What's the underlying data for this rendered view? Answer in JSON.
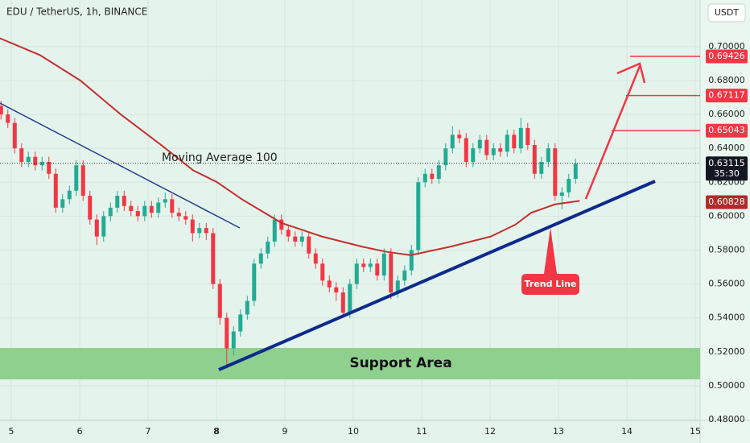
{
  "chart_data": {
    "type": "candlestick",
    "title": "EDU / TetherUS, 1h, BINANCE",
    "currency": "USDT",
    "annotations": {
      "moving_average": "Moving Average 100",
      "support": "Support Area",
      "trend": "Trend Line"
    },
    "x": [
      4.85,
      4.95,
      5.05,
      5.15,
      5.25,
      5.35,
      5.45,
      5.55,
      5.65,
      5.75,
      5.85,
      5.95,
      6.05,
      6.15,
      6.25,
      6.35,
      6.45,
      6.55,
      6.65,
      6.75,
      6.85,
      6.95,
      7.05,
      7.15,
      7.25,
      7.35,
      7.45,
      7.55,
      7.65,
      7.75,
      7.85,
      7.95,
      8.05,
      8.15,
      8.25,
      8.35,
      8.45,
      8.55,
      8.65,
      8.75,
      8.85,
      8.95,
      9.05,
      9.15,
      9.25,
      9.35,
      9.45,
      9.55,
      9.65,
      9.75,
      9.85,
      9.95,
      10.05,
      10.15,
      10.25,
      10.35,
      10.45,
      10.55,
      10.65,
      10.75,
      10.85,
      10.95,
      11.05,
      11.15,
      11.25,
      11.35,
      11.45,
      11.55,
      11.65,
      11.75,
      11.85,
      11.95,
      12.05,
      12.15,
      12.25,
      12.35,
      12.45,
      12.55,
      12.65,
      12.75,
      12.85,
      12.95,
      13.05,
      13.15,
      13.25
    ],
    "open": [
      0.665,
      0.66,
      0.655,
      0.64,
      0.632,
      0.635,
      0.63,
      0.632,
      0.625,
      0.605,
      0.61,
      0.615,
      0.63,
      0.612,
      0.598,
      0.588,
      0.6,
      0.605,
      0.612,
      0.606,
      0.603,
      0.6,
      0.606,
      0.602,
      0.608,
      0.61,
      0.602,
      0.6,
      0.598,
      0.59,
      0.593,
      0.59,
      0.56,
      0.54,
      0.522,
      0.532,
      0.542,
      0.55,
      0.572,
      0.578,
      0.585,
      0.598,
      0.592,
      0.588,
      0.585,
      0.588,
      0.578,
      0.572,
      0.562,
      0.558,
      0.555,
      0.543,
      0.56,
      0.572,
      0.57,
      0.572,
      0.565,
      0.578,
      0.555,
      0.562,
      0.568,
      0.58,
      0.62,
      0.625,
      0.622,
      0.63,
      0.64,
      0.648,
      0.646,
      0.632,
      0.64,
      0.645,
      0.636,
      0.64,
      0.638,
      0.648,
      0.64,
      0.652,
      0.642,
      0.625,
      0.632,
      0.64,
      0.612,
      0.614,
      0.622
    ],
    "high": [
      0.668,
      0.663,
      0.658,
      0.643,
      0.638,
      0.638,
      0.635,
      0.635,
      0.628,
      0.613,
      0.618,
      0.633,
      0.633,
      0.615,
      0.601,
      0.603,
      0.608,
      0.615,
      0.615,
      0.609,
      0.606,
      0.609,
      0.609,
      0.611,
      0.614,
      0.613,
      0.605,
      0.603,
      0.601,
      0.596,
      0.596,
      0.593,
      0.563,
      0.543,
      0.535,
      0.545,
      0.553,
      0.575,
      0.581,
      0.588,
      0.601,
      0.601,
      0.595,
      0.591,
      0.591,
      0.591,
      0.581,
      0.575,
      0.565,
      0.561,
      0.558,
      0.563,
      0.575,
      0.575,
      0.575,
      0.575,
      0.581,
      0.581,
      0.565,
      0.571,
      0.583,
      0.623,
      0.628,
      0.628,
      0.633,
      0.643,
      0.653,
      0.651,
      0.649,
      0.643,
      0.648,
      0.648,
      0.643,
      0.643,
      0.651,
      0.651,
      0.658,
      0.655,
      0.645,
      0.635,
      0.643,
      0.643,
      0.617,
      0.625,
      0.634
    ],
    "low": [
      0.657,
      0.652,
      0.637,
      0.629,
      0.629,
      0.627,
      0.627,
      0.622,
      0.602,
      0.602,
      0.607,
      0.612,
      0.609,
      0.595,
      0.583,
      0.585,
      0.597,
      0.602,
      0.603,
      0.6,
      0.597,
      0.597,
      0.599,
      0.599,
      0.605,
      0.599,
      0.597,
      0.595,
      0.585,
      0.587,
      0.586,
      0.557,
      0.536,
      0.512,
      0.518,
      0.529,
      0.539,
      0.547,
      0.569,
      0.575,
      0.582,
      0.589,
      0.585,
      0.582,
      0.582,
      0.575,
      0.569,
      0.559,
      0.555,
      0.55,
      0.54,
      0.54,
      0.557,
      0.567,
      0.567,
      0.562,
      0.562,
      0.551,
      0.552,
      0.559,
      0.565,
      0.577,
      0.617,
      0.619,
      0.619,
      0.627,
      0.637,
      0.643,
      0.629,
      0.629,
      0.637,
      0.633,
      0.633,
      0.635,
      0.635,
      0.637,
      0.637,
      0.639,
      0.622,
      0.622,
      0.629,
      0.609,
      0.604,
      0.611,
      0.619
    ],
    "close": [
      0.66,
      0.655,
      0.64,
      0.632,
      0.635,
      0.63,
      0.632,
      0.625,
      0.605,
      0.61,
      0.615,
      0.63,
      0.612,
      0.598,
      0.588,
      0.6,
      0.605,
      0.612,
      0.606,
      0.603,
      0.6,
      0.606,
      0.602,
      0.608,
      0.61,
      0.602,
      0.6,
      0.598,
      0.59,
      0.593,
      0.59,
      0.56,
      0.54,
      0.522,
      0.532,
      0.542,
      0.55,
      0.572,
      0.578,
      0.585,
      0.598,
      0.592,
      0.588,
      0.585,
      0.588,
      0.578,
      0.572,
      0.562,
      0.558,
      0.555,
      0.543,
      0.56,
      0.572,
      0.57,
      0.572,
      0.565,
      0.578,
      0.555,
      0.562,
      0.568,
      0.58,
      0.62,
      0.625,
      0.622,
      0.63,
      0.64,
      0.648,
      0.646,
      0.632,
      0.64,
      0.645,
      0.636,
      0.64,
      0.638,
      0.648,
      0.64,
      0.652,
      0.642,
      0.625,
      0.632,
      0.64,
      0.612,
      0.614,
      0.622,
      0.631
    ],
    "up_color": "#22ab94",
    "down_color": "#f23645",
    "moving_average": {
      "color": "#c62f2f",
      "x": [
        4.83,
        5.42,
        6.01,
        6.6,
        7.19,
        7.66,
        8.01,
        8.37,
        8.95,
        9.54,
        10.13,
        10.48,
        10.84,
        11.42,
        12.01,
        12.37,
        12.6,
        12.95,
        13.31
      ],
      "values": [
        0.705,
        0.695,
        0.68,
        0.66,
        0.642,
        0.627,
        0.62,
        0.61,
        0.596,
        0.588,
        0.582,
        0.579,
        0.577,
        0.582,
        0.588,
        0.595,
        0.602,
        0.607,
        0.609
      ]
    },
    "levels": [
      0.69426,
      0.67117,
      0.65043
    ],
    "last_price": 0.63115,
    "countdown": "35:30",
    "ma_last": 0.60828,
    "xlim": [
      4.835,
      15.07
    ],
    "ylim": [
      0.4795,
      0.7275
    ],
    "xticks": [
      5,
      6,
      7,
      8,
      9,
      10,
      11,
      12,
      13,
      14,
      15
    ],
    "yticks": [
      {
        "value": 0.48,
        "label": "0.48000"
      },
      {
        "value": 0.5,
        "label": "0.50000"
      },
      {
        "value": 0.52,
        "label": "0.52000"
      },
      {
        "value": 0.54,
        "label": "0.54000"
      },
      {
        "value": 0.56,
        "label": "0.56000"
      },
      {
        "value": 0.58,
        "label": "0.58000"
      },
      {
        "value": 0.6,
        "label": "0.60000"
      },
      {
        "value": 0.62,
        "label": "0.62000"
      },
      {
        "value": 0.64,
        "label": "0.64000"
      },
      {
        "value": 0.66,
        "label": "0.66000"
      },
      {
        "value": 0.68,
        "label": "0.68000"
      },
      {
        "value": 0.7,
        "label": "0.70000"
      }
    ],
    "grid": true
  }
}
